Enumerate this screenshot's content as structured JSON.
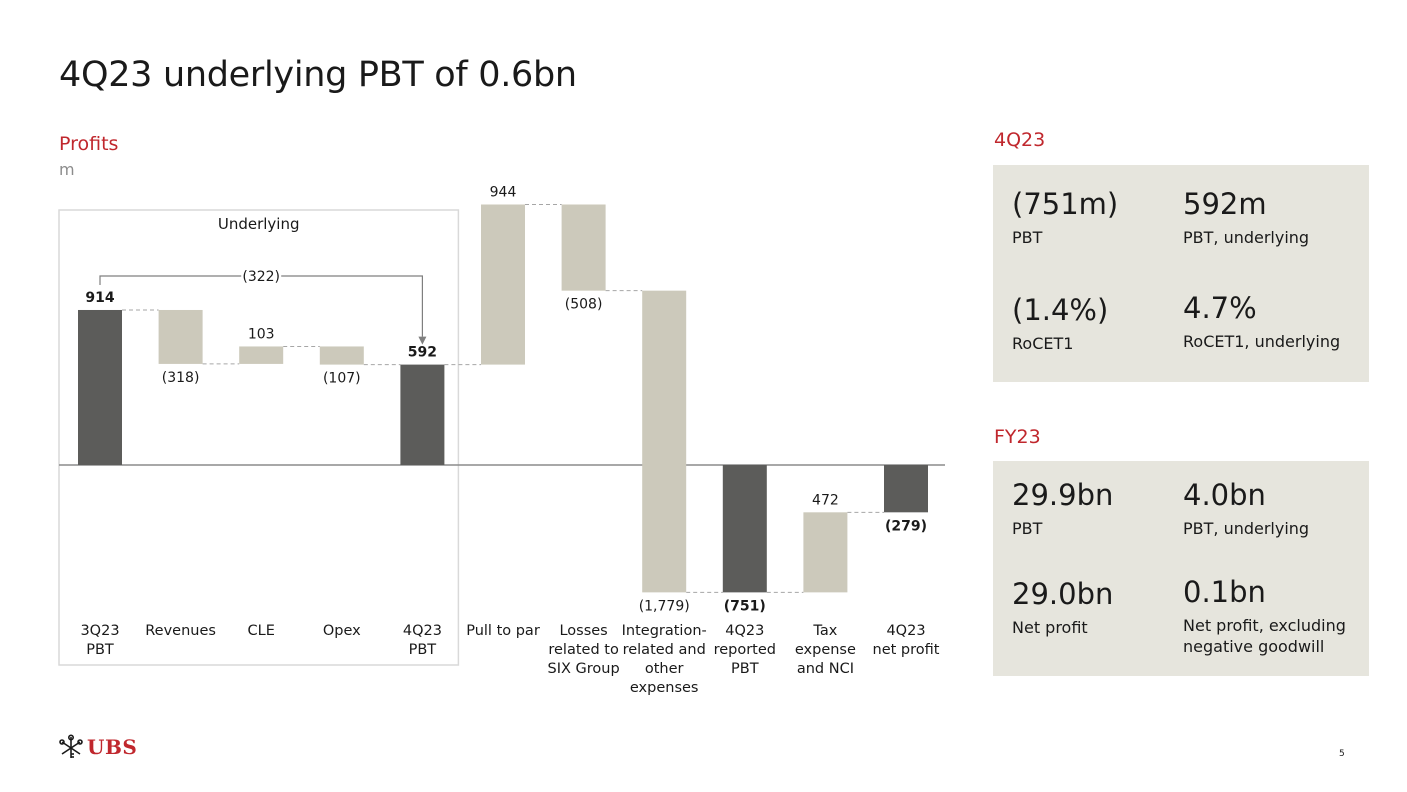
{
  "page": {
    "title": "4Q23 underlying PBT of 0.6bn",
    "page_number": "5"
  },
  "logo": {
    "text": "UBS",
    "icon": "keys-icon",
    "color": "#c0272d"
  },
  "colors": {
    "accent": "#c0272d",
    "bar_dark": "#5c5c5a",
    "bar_light": "#ccc9bb",
    "panel_bg": "#e6e5dd"
  },
  "chart_data": {
    "type": "waterfall",
    "title": "Profits",
    "unit": "m",
    "group_label": "Underlying",
    "bridge_label": "(322)",
    "baseline": 0,
    "bars": [
      {
        "label": [
          "3Q23",
          "PBT"
        ],
        "kind": "total",
        "value": 914,
        "display": "914",
        "bold": true
      },
      {
        "label": [
          "Revenues"
        ],
        "kind": "delta",
        "value": -318,
        "display": "(318)",
        "bold": false
      },
      {
        "label": [
          "CLE"
        ],
        "kind": "delta",
        "value": 103,
        "display": "103",
        "bold": false
      },
      {
        "label": [
          "Opex"
        ],
        "kind": "delta",
        "value": -107,
        "display": "(107)",
        "bold": false
      },
      {
        "label": [
          "4Q23",
          "PBT"
        ],
        "kind": "total",
        "value": 592,
        "display": "592",
        "bold": true
      },
      {
        "label": [
          "Pull to par"
        ],
        "kind": "delta",
        "value": 944,
        "display": "944",
        "bold": false
      },
      {
        "label": [
          "Losses",
          "related to",
          "SIX Group"
        ],
        "kind": "delta",
        "value": -508,
        "display": "(508)",
        "bold": false
      },
      {
        "label": [
          "Integration-",
          "related and",
          "other",
          "expenses"
        ],
        "kind": "delta",
        "value": -1779,
        "display": "(1,779)",
        "bold": false
      },
      {
        "label": [
          "4Q23",
          "reported",
          "PBT"
        ],
        "kind": "total",
        "value": -751,
        "display": "(751)",
        "bold": true
      },
      {
        "label": [
          "Tax",
          "expense",
          "and NCI"
        ],
        "kind": "delta",
        "value": 472,
        "display": "472",
        "bold": false
      },
      {
        "label": [
          "4Q23",
          "net profit"
        ],
        "kind": "total",
        "value": -279,
        "display": "(279)",
        "bold": true
      }
    ]
  },
  "sections": {
    "q4": {
      "heading": "4Q23",
      "kpis": [
        {
          "value": "(751m)",
          "label": "PBT"
        },
        {
          "value": "592m",
          "label": "PBT, underlying"
        },
        {
          "value": "(1.4%)",
          "label": "RoCET1"
        },
        {
          "value": "4.7%",
          "label": "RoCET1, underlying"
        }
      ]
    },
    "fy": {
      "heading": "FY23",
      "kpis": [
        {
          "value": "29.9bn",
          "label": "PBT"
        },
        {
          "value": "4.0bn",
          "label": "PBT, underlying"
        },
        {
          "value": "29.0bn",
          "label": "Net profit"
        },
        {
          "value": "0.1bn",
          "label": "Net profit, excluding negative goodwill"
        }
      ]
    }
  }
}
